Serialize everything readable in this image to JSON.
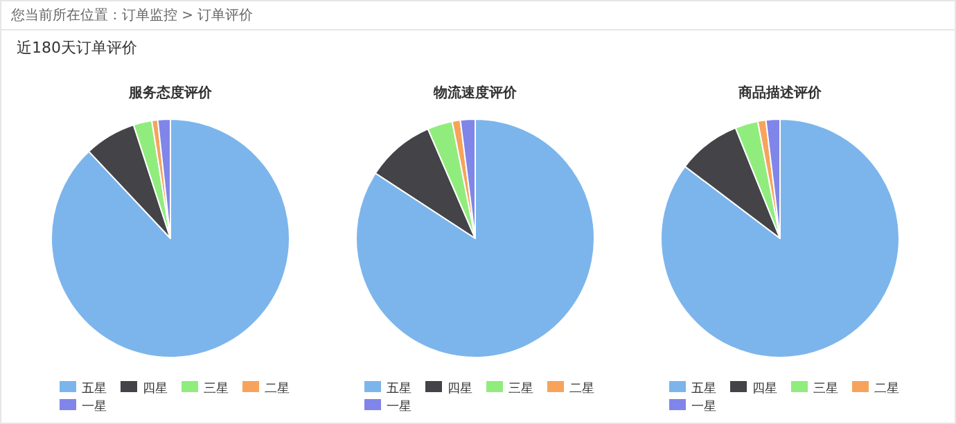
{
  "chart_data": [
    {
      "type": "pie",
      "title": "服务态度评价",
      "categories": [
        "五星",
        "四星",
        "三星",
        "二星",
        "一星"
      ],
      "values": [
        88,
        7,
        2.5,
        0.8,
        1.7
      ],
      "colors": [
        "#7cb5ec",
        "#434348",
        "#90ed7d",
        "#f7a35c",
        "#8085e9"
      ],
      "legend": "bottom",
      "annotations": [
        "您当前所在位置：订单监控 > 订单评价",
        "近180天订单评价"
      ]
    },
    {
      "type": "pie",
      "title": "物流速度评价",
      "categories": [
        "五星",
        "四星",
        "三星",
        "二星",
        "一星"
      ],
      "values": [
        84.2,
        9.3,
        3.4,
        1.1,
        2.0
      ],
      "colors": [
        "#7cb5ec",
        "#434348",
        "#90ed7d",
        "#f7a35c",
        "#8085e9"
      ],
      "legend": "bottom"
    },
    {
      "type": "pie",
      "title": "商品描述评价",
      "categories": [
        "五星",
        "四星",
        "三星",
        "二星",
        "一星"
      ],
      "values": [
        85.3,
        8.6,
        3.1,
        1.1,
        1.9
      ],
      "colors": [
        "#7cb5ec",
        "#434348",
        "#90ed7d",
        "#f7a35c",
        "#8085e9"
      ],
      "legend": "bottom"
    }
  ]
}
